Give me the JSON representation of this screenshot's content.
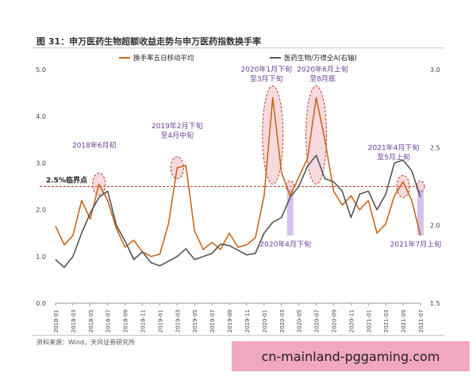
{
  "figure": {
    "title": "图 31：申万医药生物超额收益走势与申万医药指数换手率",
    "source": "资料来源：Wind，天风证券研究所"
  },
  "watermark": {
    "text": "cn-mainland-pggaming.com"
  },
  "chart_data": {
    "type": "line",
    "title": "",
    "xlabel": "",
    "ylabel": "",
    "grid": false,
    "legend_position": "top",
    "x_tick_labels": [
      "2018-01",
      "2018-03",
      "2018-05",
      "2018-07",
      "2018-09",
      "2018-11",
      "2019-01",
      "2019-03",
      "2019-05",
      "2019-07",
      "2019-09",
      "2019-11",
      "2020-01",
      "2020-03",
      "2020-05",
      "2020-07",
      "2020-09",
      "2020-11",
      "2021-01",
      "2021-03",
      "2021-05",
      "2021-07"
    ],
    "y_left": {
      "ticks": [
        "0.0",
        "1.0",
        "2.0",
        "3.0",
        "4.0",
        "5.0"
      ],
      "range": [
        0,
        5
      ]
    },
    "y_right": {
      "ticks": [
        "1.5",
        "2.0",
        "2.5",
        "3.0"
      ],
      "range": [
        1.5,
        3.0
      ]
    },
    "threshold": {
      "value": 2.5,
      "label": "2.5%临界点",
      "color": "#c0392b"
    },
    "series": [
      {
        "name": "换手率五日移动平均",
        "axis": "left",
        "color": "#c8671a",
        "points": [
          [
            "2018-01",
            1.65
          ],
          [
            "2018-02",
            1.25
          ],
          [
            "2018-03",
            1.45
          ],
          [
            "2018-04",
            2.2
          ],
          [
            "2018-05",
            1.8
          ],
          [
            "2018-06",
            2.55
          ],
          [
            "2018-07",
            2.2
          ],
          [
            "2018-08",
            1.6
          ],
          [
            "2018-09",
            1.2
          ],
          [
            "2018-10",
            1.35
          ],
          [
            "2018-11",
            1.1
          ],
          [
            "2018-12",
            1.0
          ],
          [
            "2019-01",
            1.05
          ],
          [
            "2019-02",
            1.7
          ],
          [
            "2019-03",
            2.9
          ],
          [
            "2019-04",
            2.95
          ],
          [
            "2019-05",
            1.55
          ],
          [
            "2019-06",
            1.15
          ],
          [
            "2019-07",
            1.3
          ],
          [
            "2019-08",
            1.15
          ],
          [
            "2019-09",
            1.5
          ],
          [
            "2019-10",
            1.2
          ],
          [
            "2019-11",
            1.25
          ],
          [
            "2019-12",
            1.4
          ],
          [
            "2020-01",
            2.3
          ],
          [
            "2020-02",
            4.4
          ],
          [
            "2020-03",
            2.8
          ],
          [
            "2020-04",
            2.3
          ],
          [
            "2020-05",
            2.7
          ],
          [
            "2020-06",
            3.1
          ],
          [
            "2020-07",
            4.4
          ],
          [
            "2020-08",
            3.5
          ],
          [
            "2020-09",
            2.4
          ],
          [
            "2020-10",
            2.1
          ],
          [
            "2020-11",
            2.3
          ],
          [
            "2020-12",
            2.0
          ],
          [
            "2021-01",
            2.2
          ],
          [
            "2021-02",
            1.5
          ],
          [
            "2021-03",
            1.7
          ],
          [
            "2021-04",
            2.3
          ],
          [
            "2021-05",
            2.6
          ],
          [
            "2021-06",
            2.2
          ],
          [
            "2021-07",
            1.45
          ]
        ]
      },
      {
        "name": "医药生物/万得全A(右轴)",
        "axis": "right",
        "color": "#555555",
        "points": [
          [
            "2018-01",
            1.78
          ],
          [
            "2018-02",
            1.73
          ],
          [
            "2018-03",
            1.8
          ],
          [
            "2018-04",
            1.95
          ],
          [
            "2018-05",
            2.08
          ],
          [
            "2018-06",
            2.18
          ],
          [
            "2018-07",
            2.22
          ],
          [
            "2018-08",
            2.0
          ],
          [
            "2018-09",
            1.9
          ],
          [
            "2018-10",
            1.78
          ],
          [
            "2018-11",
            1.83
          ],
          [
            "2018-12",
            1.76
          ],
          [
            "2019-01",
            1.74
          ],
          [
            "2019-02",
            1.77
          ],
          [
            "2019-03",
            1.8
          ],
          [
            "2019-04",
            1.85
          ],
          [
            "2019-05",
            1.78
          ],
          [
            "2019-06",
            1.8
          ],
          [
            "2019-07",
            1.82
          ],
          [
            "2019-08",
            1.88
          ],
          [
            "2019-09",
            1.87
          ],
          [
            "2019-10",
            1.84
          ],
          [
            "2019-11",
            1.81
          ],
          [
            "2019-12",
            1.82
          ],
          [
            "2020-01",
            1.95
          ],
          [
            "2020-02",
            2.02
          ],
          [
            "2020-03",
            2.05
          ],
          [
            "2020-04",
            2.18
          ],
          [
            "2020-05",
            2.25
          ],
          [
            "2020-06",
            2.38
          ],
          [
            "2020-07",
            2.45
          ],
          [
            "2020-08",
            2.3
          ],
          [
            "2020-09",
            2.28
          ],
          [
            "2020-10",
            2.22
          ],
          [
            "2020-11",
            2.05
          ],
          [
            "2020-12",
            2.2
          ],
          [
            "2021-01",
            2.22
          ],
          [
            "2021-02",
            2.1
          ],
          [
            "2021-03",
            2.2
          ],
          [
            "2021-04",
            2.4
          ],
          [
            "2021-05",
            2.42
          ],
          [
            "2021-06",
            2.35
          ],
          [
            "2021-07",
            2.18
          ]
        ]
      }
    ],
    "annotations": [
      {
        "label_lines": [
          "2018年6月初"
        ],
        "x": "2018-06",
        "y": 2.55,
        "style": "small-ellipse"
      },
      {
        "label_lines": [
          "2019年2月下旬",
          "至4月中旬"
        ],
        "x": "2019-03",
        "y": 2.9,
        "style": "small-ellipse"
      },
      {
        "label_lines": [
          "2020年1月下旬",
          "至3月下旬"
        ],
        "x": "2020-02",
        "y": 3.6,
        "style": "tall-ellipse"
      },
      {
        "label_lines": [
          "2020年6月上旬",
          "至8月底"
        ],
        "x": "2020-07",
        "y": 3.6,
        "style": "tall-ellipse"
      },
      {
        "label_lines": [
          "2020年4月下旬"
        ],
        "x": "2020-04",
        "y": 2.5,
        "style": "bar-below"
      },
      {
        "label_lines": [
          "2021年4月下旬",
          "至5月上旬"
        ],
        "x": "2021-05",
        "y": 2.5,
        "style": "small-ellipse"
      },
      {
        "label_lines": [
          "2021年7月上旬"
        ],
        "x": "2021-07",
        "y": 2.5,
        "style": "bar-below"
      }
    ]
  }
}
